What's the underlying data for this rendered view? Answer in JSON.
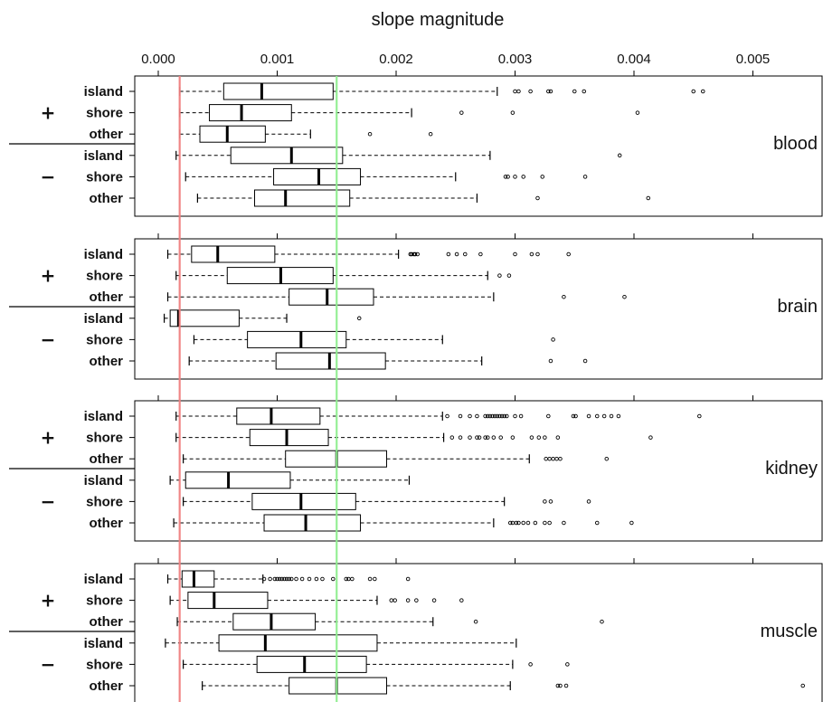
{
  "chart_data": {
    "type": "boxplot",
    "title": "slope magnitude",
    "xlim": [
      -0.00025,
      0.0056
    ],
    "x_ticks": [
      0.0,
      0.001,
      0.002,
      0.003,
      0.004,
      0.005
    ],
    "x_tick_labels": [
      "0.000",
      "0.001",
      "0.002",
      "0.003",
      "0.004",
      "0.005"
    ],
    "reference_lines": [
      {
        "value": 0.00018,
        "color": "#f08080"
      },
      {
        "value": 0.0015,
        "color": "#90ee90"
      }
    ],
    "groups": [
      {
        "sign": "+",
        "rows": [
          "island",
          "shore",
          "other"
        ]
      },
      {
        "sign": "−",
        "rows": [
          "island",
          "shore",
          "other"
        ]
      }
    ],
    "panels": [
      {
        "name": "blood",
        "series": [
          {
            "group": "+",
            "row": "island",
            "whisker_low": 0.00018,
            "q1": 0.00055,
            "median": 0.00087,
            "q3": 0.00147,
            "whisker_high": 0.00285,
            "outliers": [
              0.003,
              0.00303,
              0.00313,
              0.00328,
              0.0033,
              0.0035,
              0.00358,
              0.0045,
              0.00458
            ]
          },
          {
            "group": "+",
            "row": "shore",
            "whisker_low": 0.00018,
            "q1": 0.00043,
            "median": 0.0007,
            "q3": 0.00112,
            "whisker_high": 0.00213,
            "outliers": [
              0.00255,
              0.00298,
              0.00403
            ]
          },
          {
            "group": "+",
            "row": "other",
            "whisker_low": 0.00018,
            "q1": 0.00035,
            "median": 0.00058,
            "q3": 0.0009,
            "whisker_high": 0.00128,
            "outliers": [
              0.00178,
              0.00229
            ]
          },
          {
            "group": "−",
            "row": "island",
            "whisker_low": 0.00015,
            "q1": 0.00061,
            "median": 0.00112,
            "q3": 0.00155,
            "whisker_high": 0.00279,
            "outliers": [
              0.00388
            ]
          },
          {
            "group": "−",
            "row": "shore",
            "whisker_low": 0.00023,
            "q1": 0.00097,
            "median": 0.00135,
            "q3": 0.0017,
            "whisker_high": 0.0025,
            "outliers": [
              0.00292,
              0.00294,
              0.003,
              0.00307,
              0.00323,
              0.00359
            ]
          },
          {
            "group": "−",
            "row": "other",
            "whisker_low": 0.00033,
            "q1": 0.00081,
            "median": 0.00107,
            "q3": 0.00161,
            "whisker_high": 0.00268,
            "outliers": [
              0.00319,
              0.00412
            ]
          }
        ]
      },
      {
        "name": "brain",
        "series": [
          {
            "group": "+",
            "row": "island",
            "whisker_low": 8e-05,
            "q1": 0.00028,
            "median": 0.0005,
            "q3": 0.00098,
            "whisker_high": 0.00202,
            "outliers": [
              0.00212,
              0.00213,
              0.00215,
              0.00216,
              0.00218,
              0.00244,
              0.00251,
              0.00258,
              0.00271,
              0.003,
              0.00314,
              0.00319,
              0.00345
            ]
          },
          {
            "group": "+",
            "row": "shore",
            "whisker_low": 0.00015,
            "q1": 0.00058,
            "median": 0.00103,
            "q3": 0.00147,
            "whisker_high": 0.00277,
            "outliers": [
              0.00287,
              0.00295
            ]
          },
          {
            "group": "+",
            "row": "other",
            "whisker_low": 8e-05,
            "q1": 0.0011,
            "median": 0.00142,
            "q3": 0.00181,
            "whisker_high": 0.00282,
            "outliers": [
              0.00341,
              0.00392
            ]
          },
          {
            "group": "−",
            "row": "island",
            "whisker_low": 5e-05,
            "q1": 0.0001,
            "median": 0.00017,
            "q3": 0.00068,
            "whisker_high": 0.00108,
            "outliers": [
              0.00169
            ]
          },
          {
            "group": "−",
            "row": "shore",
            "whisker_low": 0.0003,
            "q1": 0.00075,
            "median": 0.0012,
            "q3": 0.00158,
            "whisker_high": 0.00239,
            "outliers": [
              0.00332
            ]
          },
          {
            "group": "−",
            "row": "other",
            "whisker_low": 0.00026,
            "q1": 0.00099,
            "median": 0.00144,
            "q3": 0.00191,
            "whisker_high": 0.00272,
            "outliers": [
              0.0033,
              0.00359
            ]
          }
        ]
      },
      {
        "name": "kidney",
        "series": [
          {
            "group": "+",
            "row": "island",
            "whisker_low": 0.00015,
            "q1": 0.00066,
            "median": 0.00095,
            "q3": 0.00136,
            "whisker_high": 0.00239,
            "outliers": [
              0.00243,
              0.00254,
              0.00262,
              0.00268,
              0.00275,
              0.00277,
              0.00279,
              0.00281,
              0.00283,
              0.00285,
              0.00287,
              0.00289,
              0.00291,
              0.00293,
              0.003,
              0.00305,
              0.00328,
              0.00349,
              0.00351,
              0.00362,
              0.00369,
              0.00375,
              0.00381,
              0.00387,
              0.00455
            ]
          },
          {
            "group": "+",
            "row": "shore",
            "whisker_low": 0.00015,
            "q1": 0.00077,
            "median": 0.00108,
            "q3": 0.00143,
            "whisker_high": 0.0024,
            "outliers": [
              0.00247,
              0.00254,
              0.00262,
              0.00268,
              0.0027,
              0.00275,
              0.00277,
              0.00282,
              0.00288,
              0.00298,
              0.00314,
              0.0032,
              0.00325,
              0.00336,
              0.00414
            ]
          },
          {
            "group": "+",
            "row": "other",
            "whisker_low": 0.00021,
            "q1": 0.00107,
            "median": 0.0015,
            "q3": 0.00192,
            "whisker_high": 0.00312,
            "outliers": [
              0.00326,
              0.00329,
              0.00332,
              0.00335,
              0.00338,
              0.00377
            ]
          },
          {
            "group": "−",
            "row": "island",
            "whisker_low": 0.0001,
            "q1": 0.00023,
            "median": 0.00059,
            "q3": 0.00111,
            "whisker_high": 0.00211,
            "outliers": []
          },
          {
            "group": "−",
            "row": "shore",
            "whisker_low": 0.00021,
            "q1": 0.00079,
            "median": 0.0012,
            "q3": 0.00166,
            "whisker_high": 0.00291,
            "outliers": [
              0.00325,
              0.0033,
              0.00362
            ]
          },
          {
            "group": "−",
            "row": "other",
            "whisker_low": 0.00013,
            "q1": 0.00089,
            "median": 0.00124,
            "q3": 0.0017,
            "whisker_high": 0.00282,
            "outliers": [
              0.00296,
              0.00298,
              0.00301,
              0.00303,
              0.00307,
              0.00311,
              0.00317,
              0.00325,
              0.00329,
              0.00341,
              0.00369,
              0.00398
            ]
          }
        ]
      },
      {
        "name": "muscle",
        "series": [
          {
            "group": "+",
            "row": "island",
            "whisker_low": 8e-05,
            "q1": 0.0002,
            "median": 0.0003,
            "q3": 0.00047,
            "whisker_high": 0.00088,
            "outliers": [
              0.00089,
              0.00094,
              0.00098,
              0.001,
              0.00102,
              0.00104,
              0.00106,
              0.00108,
              0.0011,
              0.00112,
              0.00116,
              0.00121,
              0.00127,
              0.00133,
              0.00138,
              0.00147,
              0.00158,
              0.0016,
              0.00163,
              0.00178,
              0.00182,
              0.0021
            ]
          },
          {
            "group": "+",
            "row": "shore",
            "whisker_low": 0.0001,
            "q1": 0.00025,
            "median": 0.00047,
            "q3": 0.00092,
            "whisker_high": 0.00184,
            "outliers": [
              0.00196,
              0.00199,
              0.0021,
              0.00217,
              0.00232,
              0.00255
            ]
          },
          {
            "group": "+",
            "row": "other",
            "whisker_low": 0.00016,
            "q1": 0.00063,
            "median": 0.00095,
            "q3": 0.00132,
            "whisker_high": 0.00231,
            "outliers": [
              0.00267,
              0.00373
            ]
          },
          {
            "group": "−",
            "row": "island",
            "whisker_low": 6e-05,
            "q1": 0.00051,
            "median": 0.0009,
            "q3": 0.00184,
            "whisker_high": 0.00301,
            "outliers": []
          },
          {
            "group": "−",
            "row": "shore",
            "whisker_low": 0.00021,
            "q1": 0.00083,
            "median": 0.00123,
            "q3": 0.00175,
            "whisker_high": 0.00298,
            "outliers": [
              0.00313,
              0.00344
            ]
          },
          {
            "group": "−",
            "row": "other",
            "whisker_low": 0.00037,
            "q1": 0.0011,
            "median": 0.0015,
            "q3": 0.00192,
            "whisker_high": 0.00296,
            "outliers": [
              0.00336,
              0.00338,
              0.00343,
              0.00542
            ]
          }
        ]
      }
    ]
  }
}
